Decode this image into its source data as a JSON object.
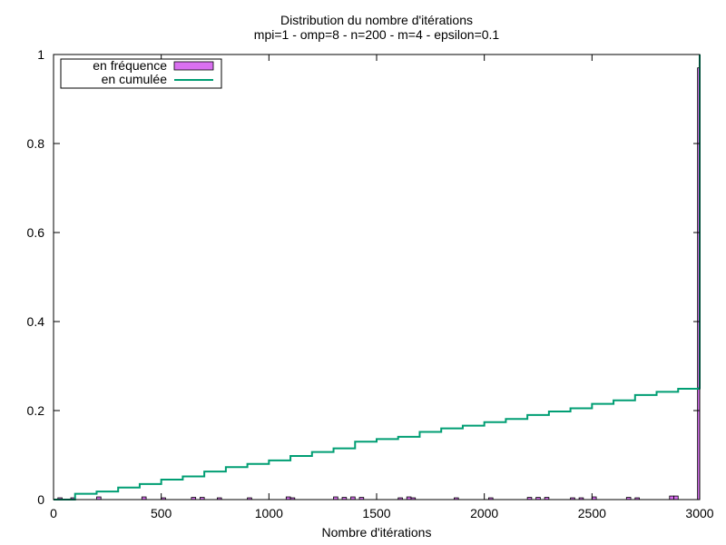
{
  "chart_data": {
    "type": "bar",
    "title": "Distribution du nombre d'itérations",
    "subtitle": "mpi=1 - omp=8 - n=200 - m=4 - epsilon=0.1",
    "xlabel": "Nombre d'itérations",
    "ylabel": "",
    "xlim": [
      0,
      3000
    ],
    "ylim": [
      0,
      1
    ],
    "xticks": [
      "0",
      "500",
      "1000",
      "1500",
      "2000",
      "2500",
      "3000"
    ],
    "yticks": [
      "0",
      "0.2",
      "0.4",
      "0.6",
      "0.8",
      "1"
    ],
    "grid": false,
    "legend_position": "top-left",
    "bin_width": 20,
    "series": [
      {
        "name": "en fréquence",
        "type": "histogram",
        "color": "#d970f0",
        "x": [
          20,
          80,
          200,
          410,
          500,
          640,
          680,
          760,
          900,
          1080,
          1100,
          1300,
          1340,
          1380,
          1420,
          1600,
          1640,
          1660,
          1860,
          2020,
          2200,
          2240,
          2280,
          2400,
          2440,
          2500,
          2660,
          2700,
          2860,
          2880,
          2990
        ],
        "values": [
          0.004,
          0.004,
          0.006,
          0.006,
          0.004,
          0.005,
          0.005,
          0.004,
          0.004,
          0.006,
          0.004,
          0.006,
          0.005,
          0.006,
          0.005,
          0.004,
          0.006,
          0.004,
          0.004,
          0.004,
          0.005,
          0.005,
          0.005,
          0.004,
          0.004,
          0.006,
          0.005,
          0.004,
          0.008,
          0.008,
          0.97
        ]
      },
      {
        "name": "en cumulée",
        "type": "line",
        "color": "#009e73",
        "x": [
          0,
          100,
          200,
          300,
          400,
          500,
          600,
          700,
          800,
          900,
          1000,
          1100,
          1200,
          1300,
          1400,
          1500,
          1600,
          1700,
          1800,
          1900,
          2000,
          2100,
          2200,
          2300,
          2400,
          2500,
          2600,
          2700,
          2800,
          2900,
          2995,
          3000
        ],
        "values": [
          0.0,
          0.013,
          0.018,
          0.027,
          0.035,
          0.045,
          0.052,
          0.063,
          0.073,
          0.08,
          0.088,
          0.098,
          0.107,
          0.115,
          0.13,
          0.136,
          0.141,
          0.152,
          0.16,
          0.166,
          0.174,
          0.181,
          0.19,
          0.198,
          0.205,
          0.215,
          0.223,
          0.235,
          0.242,
          0.249,
          0.25,
          1.0
        ]
      }
    ]
  }
}
